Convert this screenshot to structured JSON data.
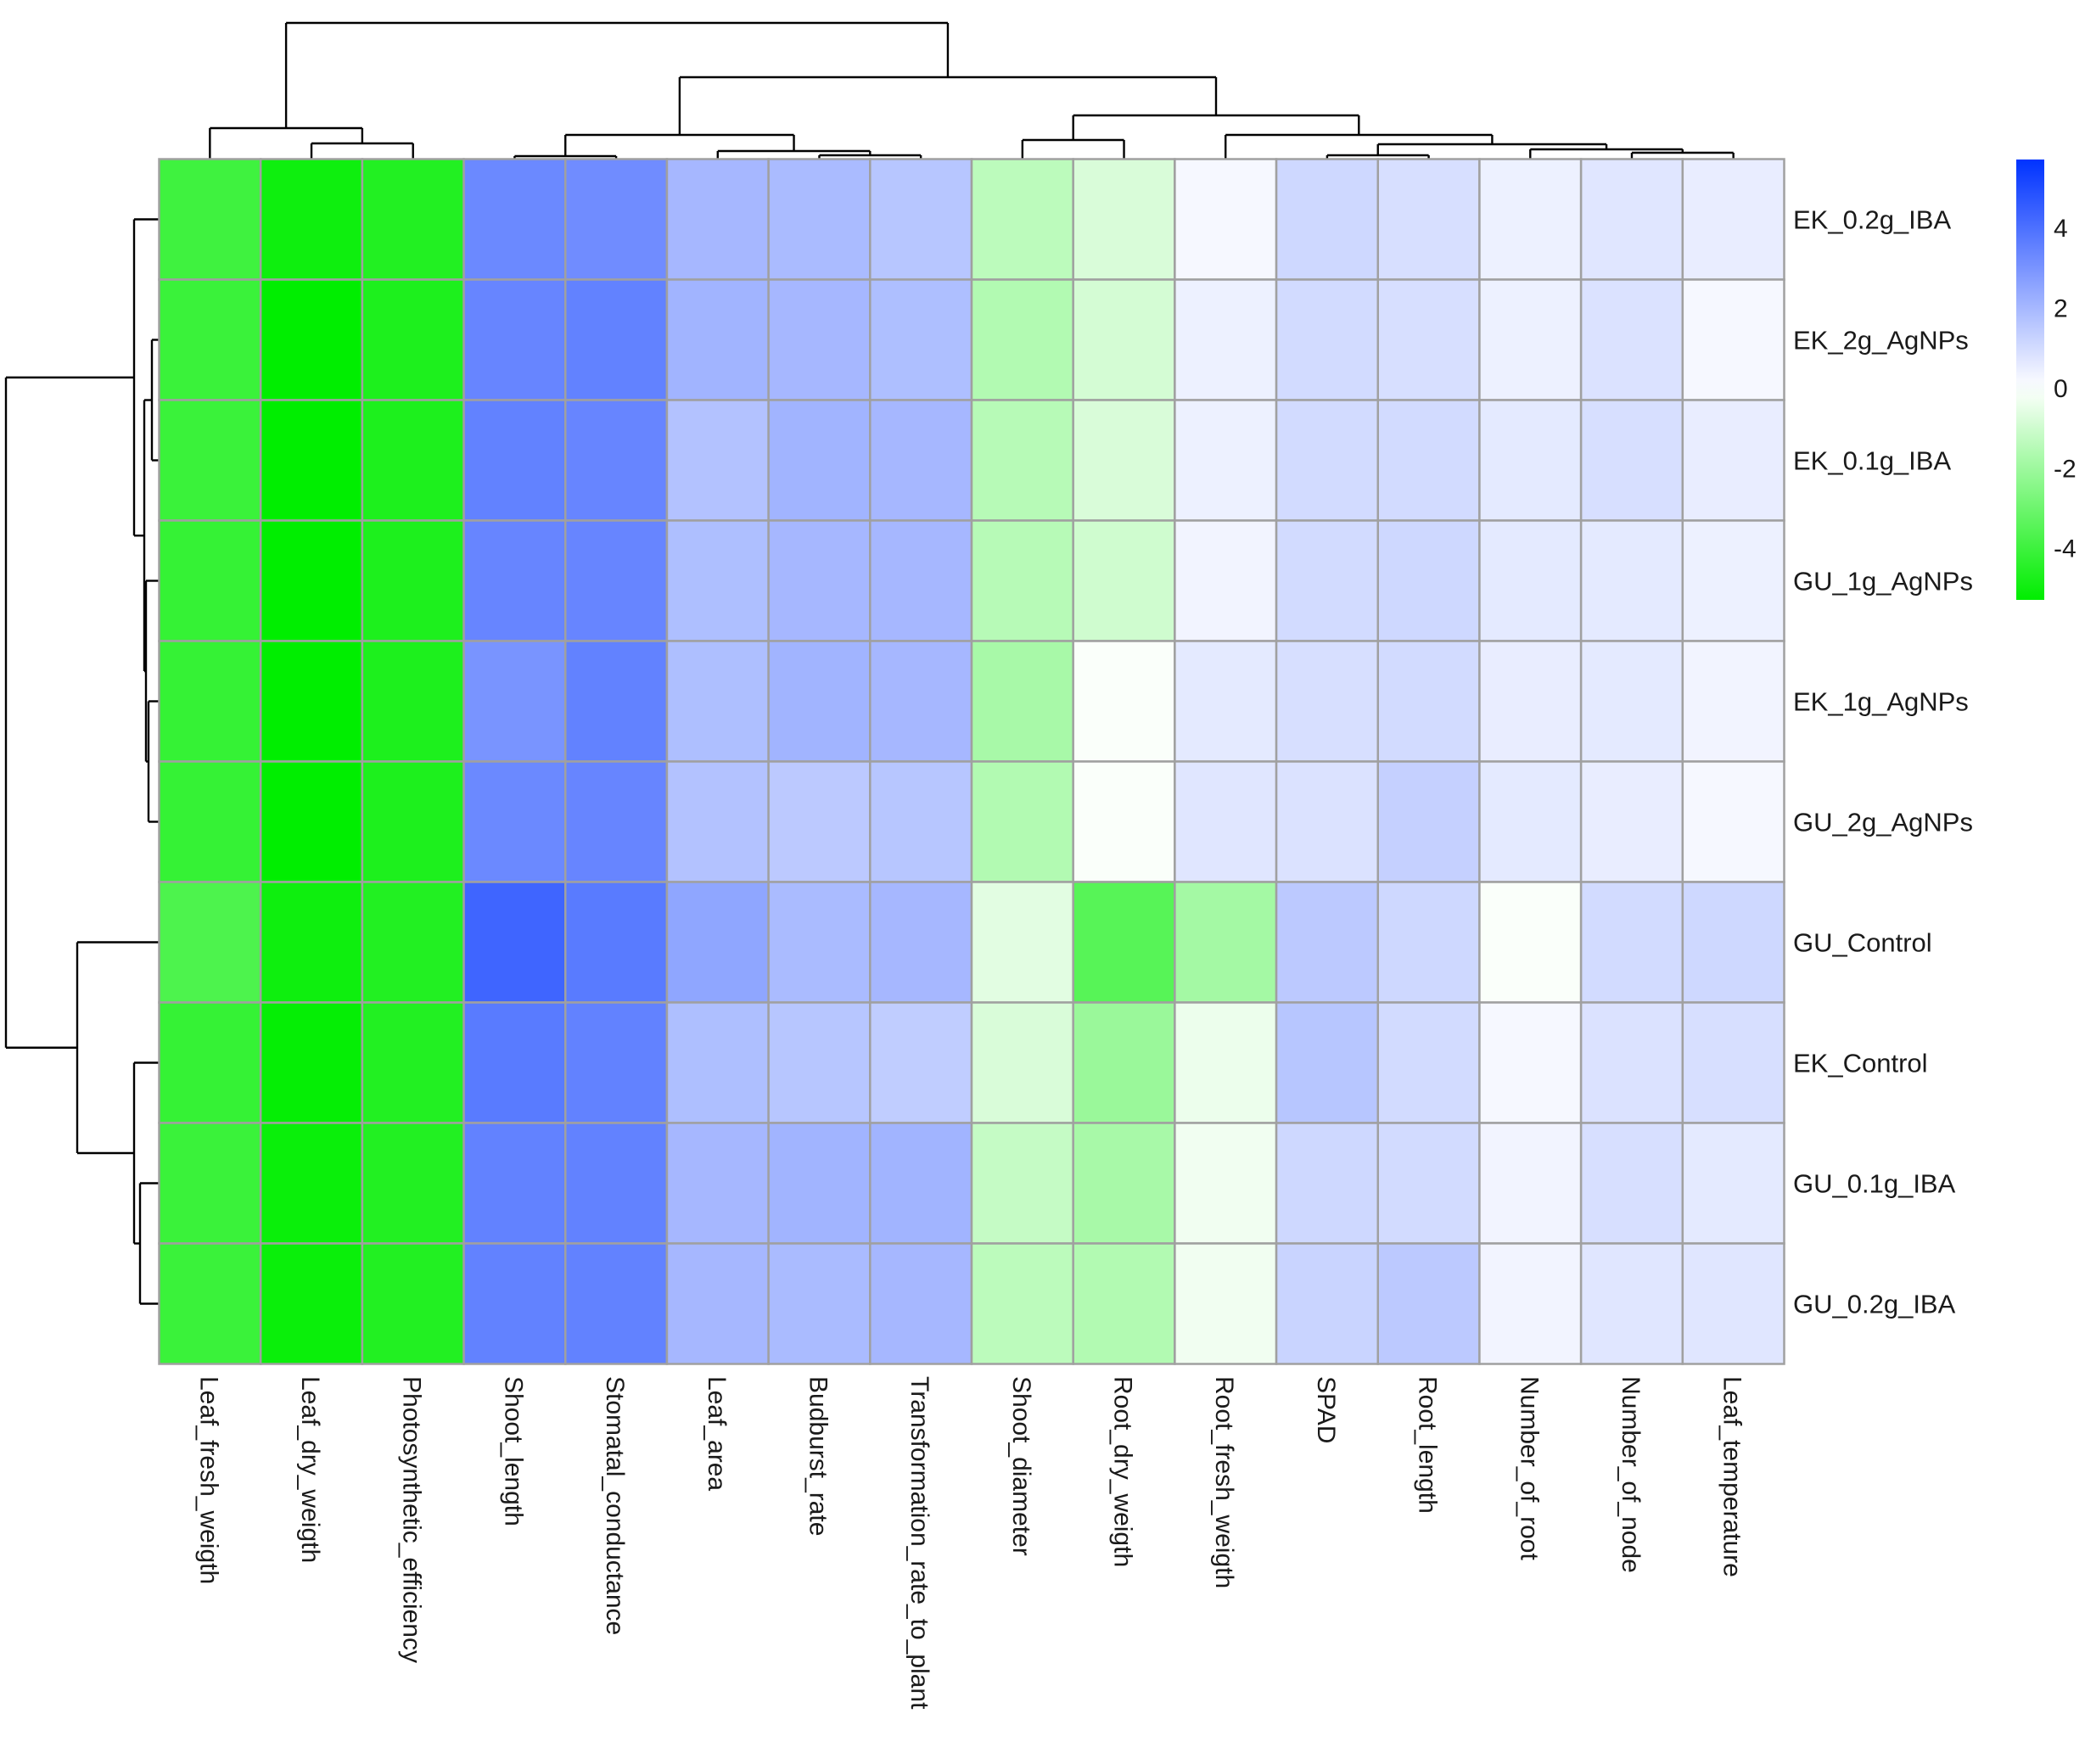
{
  "chart_data": {
    "type": "heatmap",
    "title": "",
    "columns": [
      "Leaf_fresh_weigth",
      "Leaf_dry_weigth",
      "Photosynthetic_efficiency",
      "Shoot_length",
      "Stomatal_conductance",
      "Leaf_area",
      "Budburst_rate",
      "Transformation_rate_to_plant",
      "Shoot_diameter",
      "Root_dry_weigth",
      "Root_fresh_weigth",
      "SPAD",
      "Root_length",
      "Number_of_root",
      "Number_of_node",
      "Leaf_temperature"
    ],
    "rows": [
      "EK_0.2g_IBA",
      "EK_2g_AgNPs",
      "EK_0.1g_IBA",
      "GU_1g_AgNPs",
      "EK_1g_AgNPs",
      "GU_2g_AgNPs",
      "GU_Control",
      "EK_Control",
      "GU_0.1g_IBA",
      "GU_0.2g_IBA"
    ],
    "values": [
      [
        -4.0,
        -5.0,
        -4.6,
        3.3,
        3.2,
        2.0,
        1.9,
        1.6,
        -1.4,
        -0.8,
        0.2,
        1.1,
        0.9,
        0.4,
        0.7,
        0.5
      ],
      [
        -4.1,
        -5.3,
        -4.7,
        3.4,
        3.5,
        2.1,
        2.0,
        1.8,
        -1.6,
        -0.9,
        0.4,
        1.0,
        0.9,
        0.4,
        0.8,
        0.2
      ],
      [
        -4.1,
        -5.3,
        -4.7,
        3.5,
        3.4,
        1.7,
        2.1,
        2.0,
        -1.5,
        -0.8,
        0.4,
        1.0,
        1.0,
        0.6,
        0.9,
        0.5
      ],
      [
        -4.2,
        -5.3,
        -4.7,
        3.4,
        3.4,
        1.8,
        2.0,
        2.0,
        -1.5,
        -1.0,
        0.3,
        1.0,
        1.1,
        0.6,
        0.6,
        0.4
      ],
      [
        -4.2,
        -5.3,
        -4.7,
        3.0,
        3.5,
        1.8,
        2.1,
        2.0,
        -1.8,
        -0.1,
        0.6,
        0.9,
        1.0,
        0.5,
        0.6,
        0.3
      ],
      [
        -4.2,
        -5.3,
        -4.7,
        3.3,
        3.4,
        1.7,
        1.5,
        1.6,
        -1.6,
        -0.1,
        0.7,
        0.8,
        1.3,
        0.6,
        0.5,
        0.2
      ],
      [
        -3.7,
        -5.0,
        -4.6,
        4.3,
        3.7,
        2.5,
        1.9,
        2.0,
        -0.6,
        -3.5,
        -1.9,
        1.5,
        1.1,
        -0.1,
        1.0,
        1.1
      ],
      [
        -4.2,
        -5.2,
        -4.6,
        3.7,
        3.5,
        1.8,
        1.6,
        1.4,
        -0.8,
        -2.1,
        -0.4,
        1.6,
        1.0,
        0.2,
        0.8,
        0.9
      ],
      [
        -4.1,
        -5.1,
        -4.6,
        3.5,
        3.5,
        2.0,
        2.1,
        2.1,
        -1.2,
        -1.8,
        -0.3,
        1.1,
        1.0,
        0.3,
        0.9,
        0.6
      ],
      [
        -4.1,
        -5.1,
        -4.6,
        3.5,
        3.5,
        2.0,
        1.9,
        2.0,
        -1.4,
        -1.6,
        -0.3,
        1.2,
        1.5,
        0.3,
        0.7,
        0.7
      ]
    ],
    "colorbar": {
      "ticks": [
        4,
        2,
        0,
        -2,
        -4
      ],
      "range": [
        -5.3,
        5.7
      ],
      "low_color": "#00ee00",
      "mid_color": "#ffffff",
      "high_color": "#0033ff"
    },
    "legend_position": "top-right",
    "column_dendrogram": true,
    "row_dendrogram": true
  }
}
